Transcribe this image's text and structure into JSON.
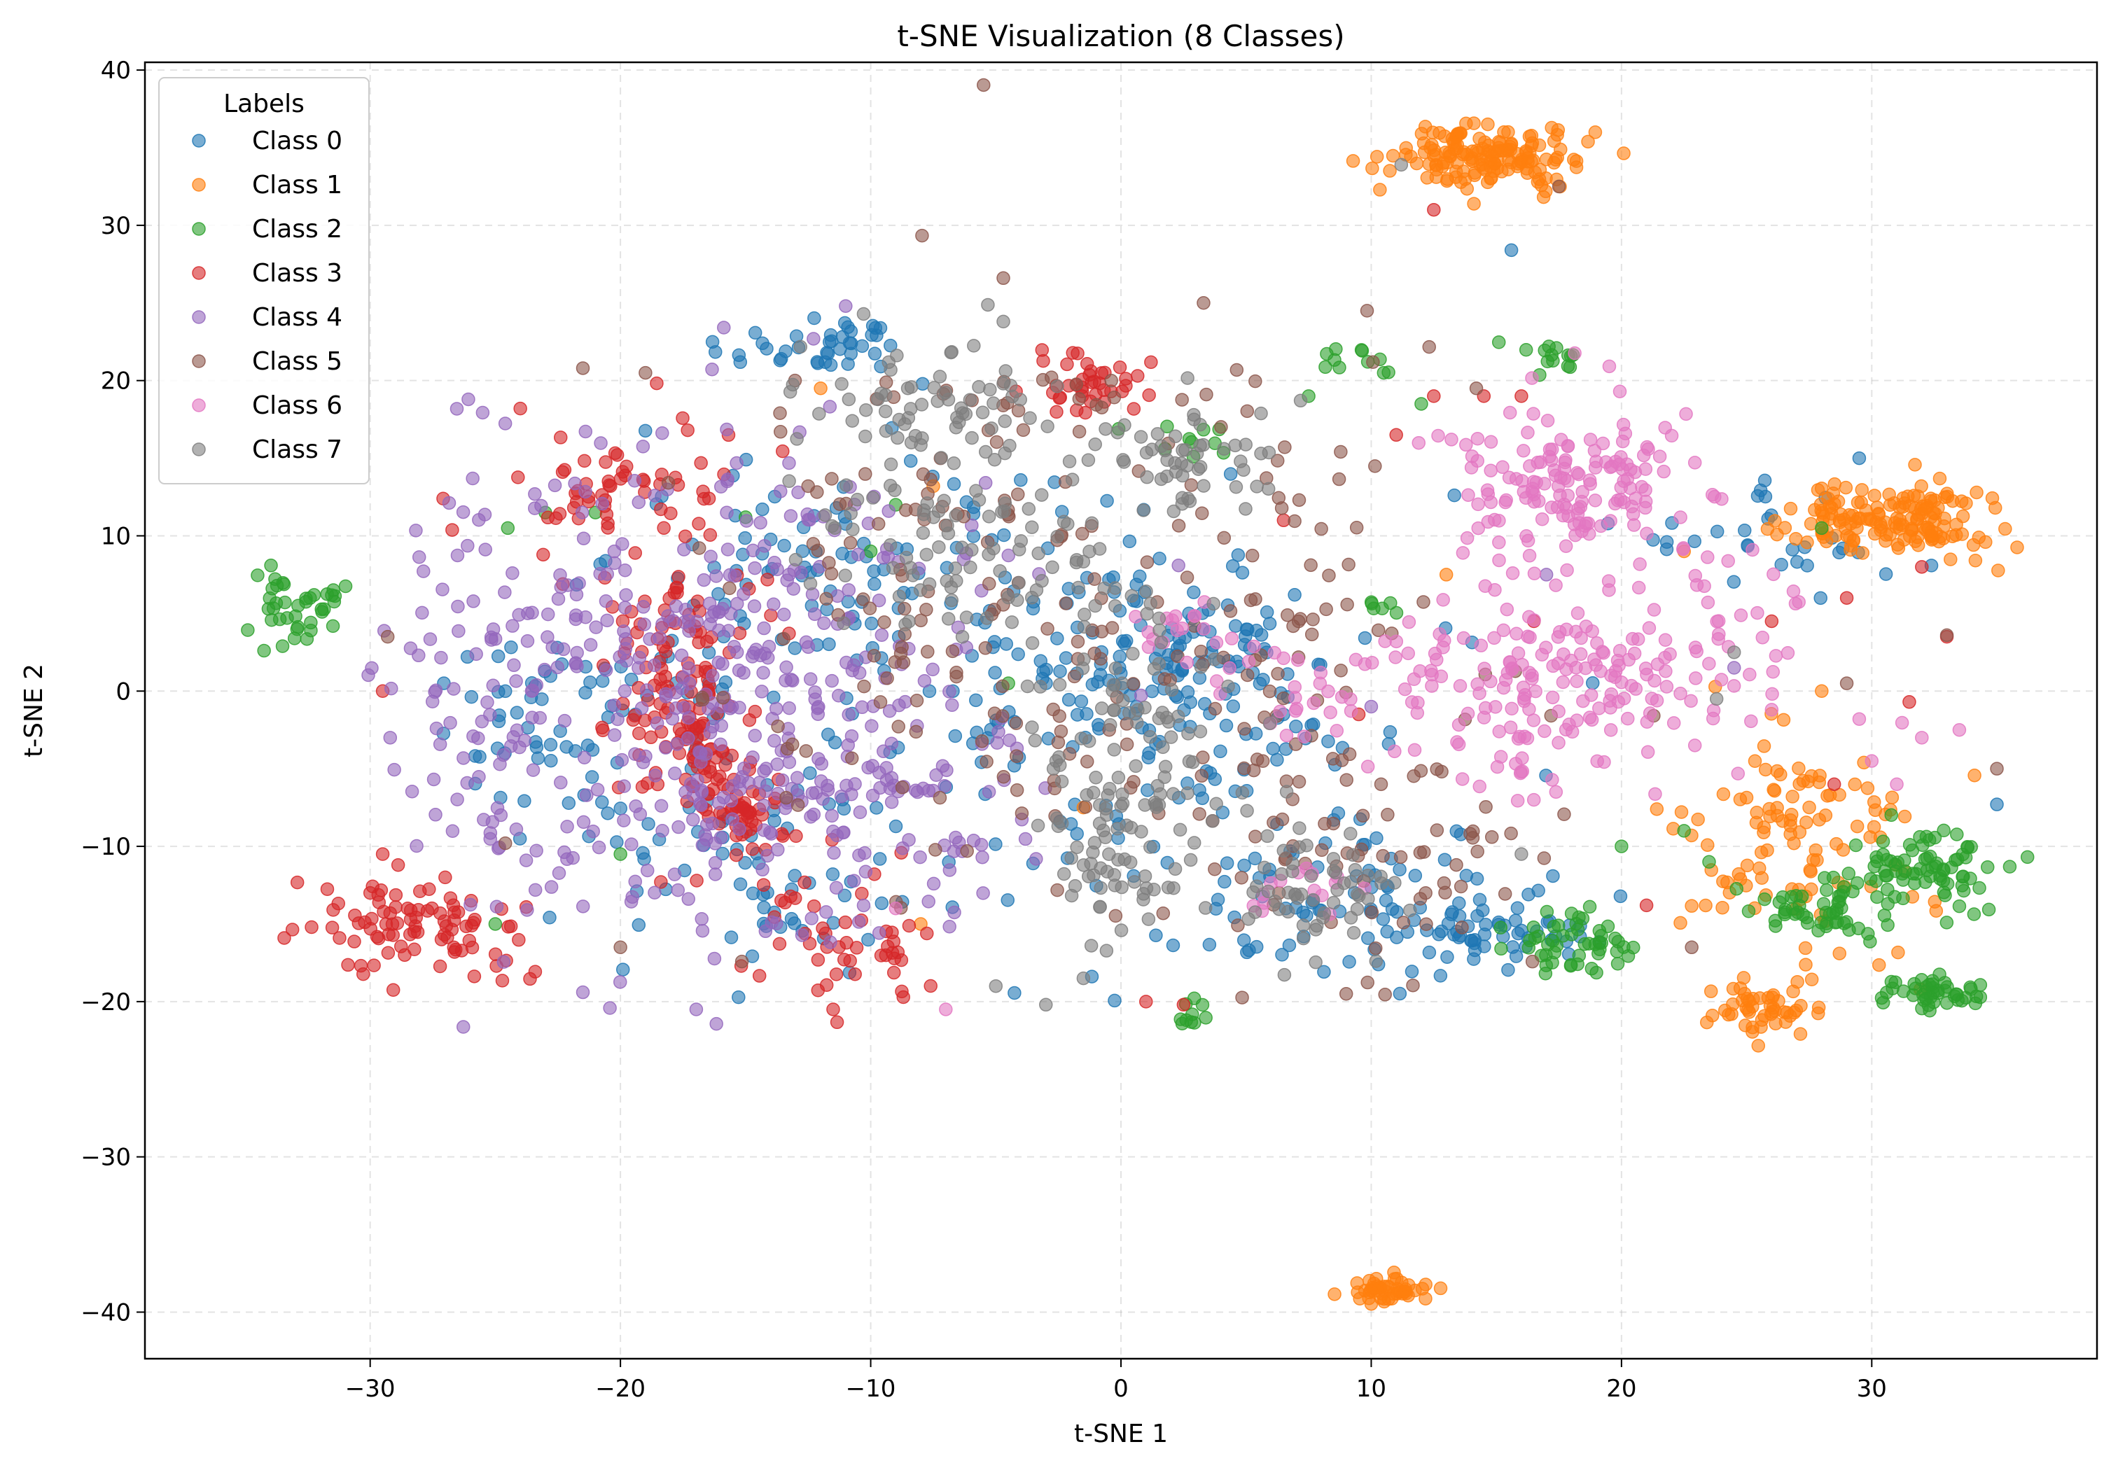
{
  "chart_data": {
    "type": "scatter",
    "title": "t-SNE Visualization (8 Classes)",
    "xlabel": "t-SNE 1",
    "ylabel": "t-SNE 2",
    "xlim": [
      -39,
      39
    ],
    "ylim": [
      -43,
      40.5
    ],
    "xticks": [
      -30,
      -20,
      -10,
      0,
      10,
      20,
      30
    ],
    "yticks": [
      -40,
      -30,
      -20,
      -10,
      0,
      10,
      20,
      30,
      40
    ],
    "xtick_labels": [
      "−30",
      "−20",
      "−10",
      "0",
      "10",
      "20",
      "30"
    ],
    "ytick_labels": [
      "−40",
      "−30",
      "−20",
      "−10",
      "0",
      "10",
      "20",
      "30",
      "40"
    ],
    "grid": true,
    "legend": {
      "title": "Labels",
      "placement": "top-left"
    },
    "series": [
      {
        "name": "Class 0",
        "color": "#1f77b4",
        "clusters": [
          {
            "center": [
              -12,
              22
            ],
            "spread": [
              2.0,
              1.2
            ],
            "count": 40
          },
          {
            "center": [
              -11,
              5
            ],
            "spread": [
              5,
              6
            ],
            "count": 120
          },
          {
            "center": [
              1,
              1
            ],
            "spread": [
              4,
              4
            ],
            "count": 110
          },
          {
            "center": [
              3,
              2
            ],
            "spread": [
              1.3,
              1.5
            ],
            "count": 40
          },
          {
            "center": [
              10,
              -13
            ],
            "spread": [
              4,
              2.5
            ],
            "count": 80
          },
          {
            "center": [
              15,
              -16
            ],
            "spread": [
              2,
              1
            ],
            "count": 40
          },
          {
            "center": [
              -22,
              -2
            ],
            "spread": [
              3,
              3
            ],
            "count": 60
          },
          {
            "center": [
              -15,
              -12
            ],
            "spread": [
              4,
              4
            ],
            "count": 60
          },
          {
            "center": [
              26,
              10
            ],
            "spread": [
              3,
              2
            ],
            "count": 30
          },
          {
            "center": [
              0,
              -5
            ],
            "spread": [
              6,
              6
            ],
            "count": 80
          }
        ],
        "points": [
          [
            15.6,
            28.4
          ],
          [
            29.5,
            15
          ],
          [
            35,
            -7.3
          ],
          [
            8.5,
            -8.3
          ]
        ]
      },
      {
        "name": "Class 1",
        "color": "#ff7f0e",
        "clusters": [
          {
            "center": [
              14.5,
              34.3
            ],
            "spread": [
              1.8,
              1.0
            ],
            "count": 160
          },
          {
            "center": [
              31.2,
              11.2
            ],
            "spread": [
              1.9,
              1.2
            ],
            "count": 160
          },
          {
            "center": [
              27,
              -9
            ],
            "spread": [
              2.3,
              4.0
            ],
            "count": 110
          },
          {
            "center": [
              25.8,
              -20.5
            ],
            "spread": [
              1.2,
              0.9
            ],
            "count": 50
          },
          {
            "center": [
              10.5,
              -38.5
            ],
            "spread": [
              0.8,
              0.5
            ],
            "count": 50
          }
        ],
        "points": [
          [
            -7.5,
            13.2
          ],
          [
            -8,
            -15
          ],
          [
            -12,
            19.5
          ],
          [
            13,
            7.5
          ],
          [
            22.5,
            9
          ],
          [
            28,
            0
          ],
          [
            -1.5,
            -7.5
          ]
        ]
      },
      {
        "name": "Class 2",
        "color": "#2ca02c",
        "clusters": [
          {
            "center": [
              -33,
              5.5
            ],
            "spread": [
              1.0,
              1.2
            ],
            "count": 40
          },
          {
            "center": [
              17,
              21.5
            ],
            "spread": [
              0.8,
              0.6
            ],
            "count": 14
          },
          {
            "center": [
              9.5,
              21.5
            ],
            "spread": [
              0.8,
              0.5
            ],
            "count": 10
          },
          {
            "center": [
              18,
              -16
            ],
            "spread": [
              1.2,
              1.0
            ],
            "count": 50
          },
          {
            "center": [
              28,
              -14
            ],
            "spread": [
              1.5,
              1.0
            ],
            "count": 50
          },
          {
            "center": [
              32,
              -11.5
            ],
            "spread": [
              1.7,
              1.5
            ],
            "count": 80
          },
          {
            "center": [
              32.5,
              -19.5
            ],
            "spread": [
              1.0,
              0.6
            ],
            "count": 45
          },
          {
            "center": [
              2.8,
              -21
            ],
            "spread": [
              0.5,
              0.6
            ],
            "count": 10
          },
          {
            "center": [
              10.5,
              5.5
            ],
            "spread": [
              0.6,
              0.4
            ],
            "count": 6
          },
          {
            "center": [
              2.5,
              16
            ],
            "spread": [
              1.2,
              0.8
            ],
            "count": 10
          }
        ],
        "points": [
          [
            -24.5,
            10.5
          ],
          [
            -21,
            11.5
          ],
          [
            -23,
            11.5
          ],
          [
            -15,
            11.2
          ],
          [
            -20,
            -10.5
          ],
          [
            -25,
            -15
          ],
          [
            7.5,
            19
          ],
          [
            10.5,
            20.5
          ],
          [
            12,
            18.5
          ],
          [
            20,
            -10
          ],
          [
            22.5,
            -9
          ],
          [
            23.5,
            -11
          ],
          [
            -10,
            9
          ],
          [
            -4.5,
            0.5
          ],
          [
            28,
            10.5
          ],
          [
            -9,
            12
          ]
        ]
      },
      {
        "name": "Class 3",
        "color": "#d62728",
        "clusters": [
          {
            "center": [
              -20,
              13
            ],
            "spread": [
              2.3,
              2.3
            ],
            "count": 60
          },
          {
            "center": [
              -18,
              0
            ],
            "spread": [
              1.4,
              3.0
            ],
            "count": 70
          },
          {
            "center": [
              -16.5,
              -5
            ],
            "spread": [
              1.2,
              1.8
            ],
            "count": 45
          },
          {
            "center": [
              -15,
              -8
            ],
            "spread": [
              1.0,
              1.3
            ],
            "count": 40
          },
          {
            "center": [
              -27.5,
              -15
            ],
            "spread": [
              2.0,
              1.5
            ],
            "count": 90
          },
          {
            "center": [
              -12.5,
              -15
            ],
            "spread": [
              1.5,
              2.5
            ],
            "count": 30
          },
          {
            "center": [
              -10,
              -17
            ],
            "spread": [
              1.0,
              1.2
            ],
            "count": 20
          },
          {
            "center": [
              -1.5,
              20
            ],
            "spread": [
              1.3,
              1.0
            ],
            "count": 40
          },
          {
            "center": [
              -17,
              5
            ],
            "spread": [
              1.5,
              1.5
            ],
            "count": 30
          }
        ],
        "points": [
          [
            -24,
            18.2
          ],
          [
            -30,
            -13
          ],
          [
            -29.5,
            -10.5
          ],
          [
            -29.5,
            0
          ],
          [
            12.5,
            31
          ],
          [
            14.5,
            19
          ],
          [
            12.5,
            19
          ],
          [
            16,
            19
          ],
          [
            28.5,
            -6
          ],
          [
            29,
            6
          ],
          [
            31.5,
            -0.7
          ],
          [
            33,
            3.5
          ],
          [
            32,
            8
          ],
          [
            26,
            4.5
          ],
          [
            -11.5,
            -20.5
          ],
          [
            21,
            -13.8
          ],
          [
            9.5,
            -1.5
          ],
          [
            6.5,
            11
          ],
          [
            2.5,
            -20.2
          ],
          [
            1,
            -20
          ],
          [
            11,
            16.5
          ],
          [
            16.5,
            4.5
          ]
        ]
      },
      {
        "name": "Class 4",
        "color": "#9467bd",
        "clusters": [
          {
            "center": [
              -16,
              0
            ],
            "spread": [
              5.5,
              8
            ],
            "count": 420
          },
          {
            "center": [
              -25,
              0
            ],
            "spread": [
              2.0,
              7
            ],
            "count": 60
          },
          {
            "center": [
              -9,
              -8
            ],
            "spread": [
              3,
              3
            ],
            "count": 60
          }
        ],
        "points": [
          [
            -11,
            24.8
          ],
          [
            -21.5,
            -19.4
          ],
          [
            -29.2,
            -3
          ],
          [
            17,
            7.5
          ],
          [
            24.5,
            1.5
          ],
          [
            10,
            -1
          ]
        ]
      },
      {
        "name": "Class 5",
        "color": "#8c564b",
        "clusters": [
          {
            "center": [
              -7,
              5
            ],
            "spread": [
              5,
              9
            ],
            "count": 150
          },
          {
            "center": [
              5,
              5
            ],
            "spread": [
              4,
              9
            ],
            "count": 90
          },
          {
            "center": [
              11,
              -9
            ],
            "spread": [
              3.5,
              4
            ],
            "count": 70
          }
        ],
        "points": [
          [
            -4.7,
            26.6
          ],
          [
            3.3,
            25
          ],
          [
            -19,
            20.5
          ],
          [
            -21.5,
            20.8
          ],
          [
            -12.5,
            13.2
          ],
          [
            -20,
            -16.5
          ],
          [
            9,
            -19.5
          ],
          [
            17.5,
            32.5
          ],
          [
            14.2,
            19.5
          ],
          [
            35,
            -5
          ],
          [
            33,
            3.6
          ],
          [
            29,
            0.5
          ],
          [
            -29.3,
            3.5
          ],
          [
            -24.6,
            -9.8
          ]
        ]
      },
      {
        "name": "Class 6",
        "color": "#e377c2",
        "clusters": [
          {
            "center": [
              17.8,
              13.5
            ],
            "spread": [
              2.2,
              2.6
            ],
            "count": 150
          },
          {
            "center": [
              17,
              0
            ],
            "spread": [
              3.6,
              3.2
            ],
            "count": 170
          },
          {
            "center": [
              23,
              4
            ],
            "spread": [
              2.5,
              3
            ],
            "count": 40
          },
          {
            "center": [
              2.5,
              3.5
            ],
            "spread": [
              1.0,
              1.5
            ],
            "count": 18
          },
          {
            "center": [
              7.5,
              -13
            ],
            "spread": [
              1.0,
              1.0
            ],
            "count": 15
          },
          {
            "center": [
              8,
              0
            ],
            "spread": [
              2.5,
              2.0
            ],
            "count": 30
          }
        ],
        "points": [
          [
            -7,
            -20.5
          ],
          [
            -9,
            -14
          ],
          [
            30,
            -4.5
          ],
          [
            32,
            -3
          ],
          [
            31,
            -6
          ],
          [
            33.5,
            -2.5
          ],
          [
            26,
            -1.2
          ],
          [
            29.5,
            -1.8
          ]
        ]
      },
      {
        "name": "Class 7",
        "color": "#7f7f7f",
        "clusters": [
          {
            "center": [
              -7.5,
              18
            ],
            "spread": [
              2.5,
              2.3
            ],
            "count": 70
          },
          {
            "center": [
              -5,
              9
            ],
            "spread": [
              3.5,
              3.2
            ],
            "count": 90
          },
          {
            "center": [
              3,
              15.5
            ],
            "spread": [
              1.8,
              2.0
            ],
            "count": 50
          },
          {
            "center": [
              0,
              -3
            ],
            "spread": [
              2.3,
              6.0
            ],
            "count": 110
          },
          {
            "center": [
              0,
              -11
            ],
            "spread": [
              1.3,
              1.8
            ],
            "count": 30
          },
          {
            "center": [
              8,
              -13
            ],
            "spread": [
              1.5,
              2.2
            ],
            "count": 55
          }
        ],
        "points": [
          [
            11.2,
            33.9
          ],
          [
            -4.7,
            23.8
          ],
          [
            -3,
            -20.2
          ],
          [
            -5,
            -19
          ],
          [
            -1.5,
            -18.5
          ],
          [
            24.5,
            2.5
          ],
          [
            23.8,
            -0.5
          ],
          [
            16,
            -10.5
          ]
        ]
      }
    ]
  }
}
